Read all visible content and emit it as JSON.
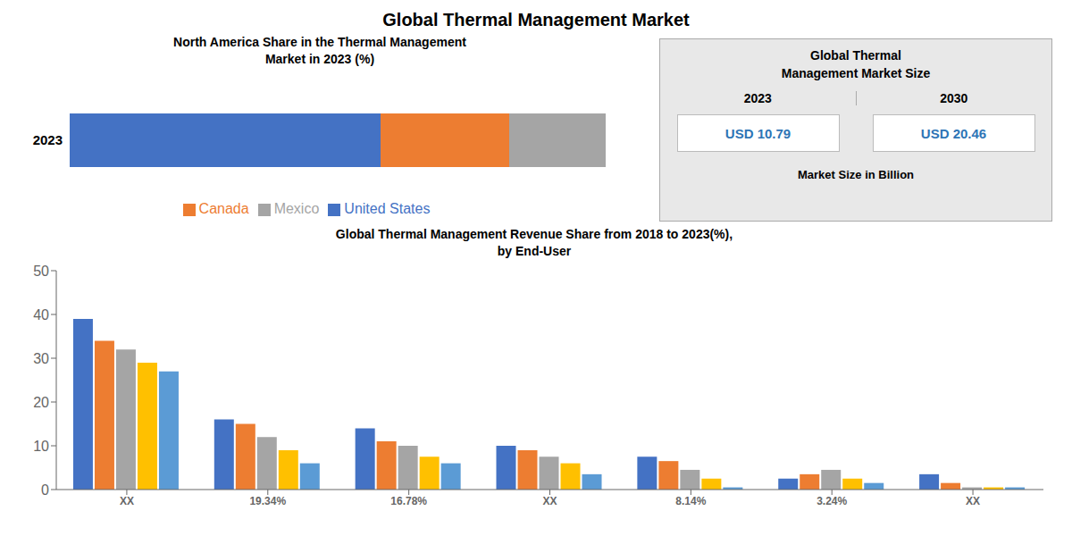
{
  "title": "Global Thermal Management Market",
  "annotations": [
    {
      "text": "Global Thermal"
    },
    {
      "text": "Management Market Size"
    },
    {
      "text": "2023"
    },
    {
      "text": "2030"
    },
    {
      "text": "USD 10.79",
      "color": "#2E75B6"
    },
    {
      "text": "USD 20.46",
      "color": "#2E75B6"
    },
    {
      "text": "Market Size in Billion"
    }
  ],
  "chart_data": [
    {
      "type": "bar",
      "orientation": "horizontal",
      "stacked": true,
      "title": "North America Share in the Thermal Management\nMarket in 2023 (%)",
      "categories": [
        "2023"
      ],
      "series": [
        {
          "name": "United States",
          "color": "#4472C4",
          "values": [
            58
          ]
        },
        {
          "name": "Canada",
          "color": "#ED7D31",
          "values": [
            24
          ]
        },
        {
          "name": "Mexico",
          "color": "#A5A5A5",
          "values": [
            18
          ]
        }
      ],
      "xlim": [
        0,
        100
      ],
      "tick_labels": "y",
      "legend": "bottom",
      "grid": false
    },
    {
      "type": "bar",
      "title": "Global Thermal Management Revenue Share from 2018 to 2023(%),\nby End-User",
      "categories": [
        "XX",
        "19.34%",
        "16.78%",
        "XX",
        "8.14%",
        "3.24%",
        "XX"
      ],
      "series": [
        {
          "color": "#4472C4",
          "values": [
            39,
            16,
            14,
            10,
            7.5,
            2.5,
            3.5
          ]
        },
        {
          "color": "#ED7D31",
          "values": [
            34,
            15,
            11,
            9,
            6.5,
            3.5,
            1.5
          ]
        },
        {
          "color": "#A5A5A5",
          "values": [
            32,
            12,
            10,
            7.5,
            4.5,
            4.5,
            0.5
          ]
        },
        {
          "color": "#FFC000",
          "values": [
            29,
            9,
            7.5,
            6,
            2.5,
            2.5,
            0.5
          ]
        },
        {
          "color": "#5B9BD5",
          "values": [
            27,
            6,
            6,
            3.5,
            0.5,
            1.5,
            0.5
          ]
        }
      ],
      "ylim": [
        0,
        50
      ],
      "yticks": [
        0,
        10,
        20,
        30,
        40,
        50
      ],
      "grid": false
    }
  ]
}
